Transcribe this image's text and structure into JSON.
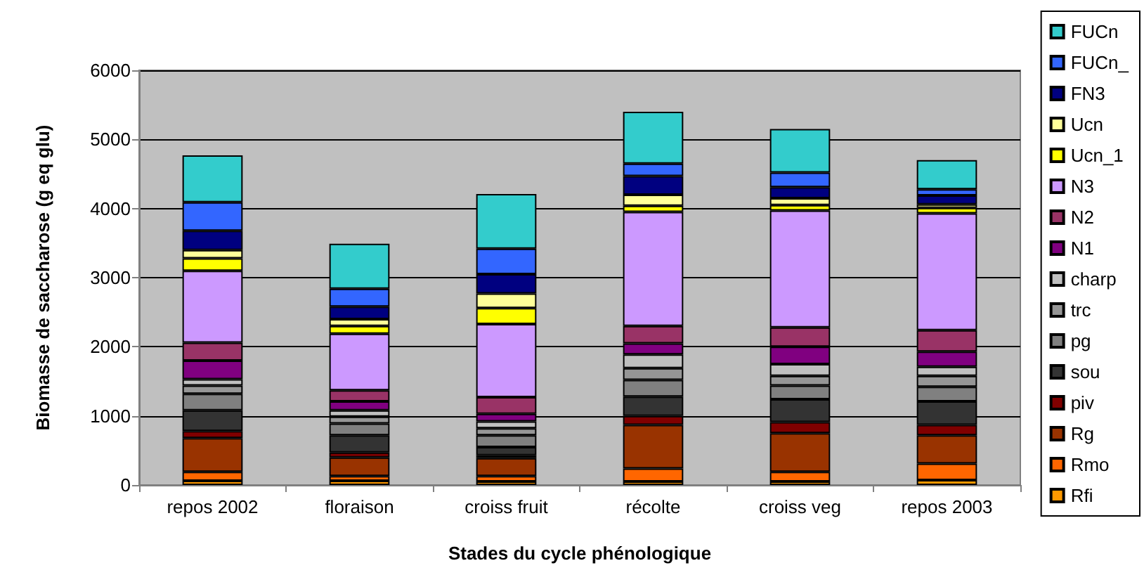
{
  "chart_data": {
    "type": "bar",
    "stacked": true,
    "xlabel": "Stades du cycle phénologique",
    "ylabel": "Biomasse de saccharose (g eq glu)",
    "categories": [
      "repos 2002",
      "floraison",
      "croiss fruit",
      "récolte",
      "croiss veg",
      "repos 2003"
    ],
    "ylim": [
      0,
      6000
    ],
    "yticks": [
      0,
      1000,
      2000,
      3000,
      4000,
      5000,
      6000
    ],
    "grid": "y",
    "legend": "right",
    "series": [
      {
        "name": "Rfi",
        "color": "#ff9900",
        "values": [
          60,
          60,
          50,
          50,
          50,
          70
        ]
      },
      {
        "name": "Rmo",
        "color": "#ff6600",
        "values": [
          130,
          70,
          80,
          190,
          140,
          240
        ]
      },
      {
        "name": "Rg",
        "color": "#993300",
        "values": [
          490,
          270,
          260,
          630,
          560,
          410
        ]
      },
      {
        "name": "piv",
        "color": "#800000",
        "values": [
          100,
          70,
          40,
          130,
          160,
          150
        ]
      },
      {
        "name": "sou",
        "color": "#333333",
        "values": [
          300,
          250,
          120,
          280,
          330,
          340
        ]
      },
      {
        "name": "pg",
        "color": "#808080",
        "values": [
          240,
          170,
          170,
          240,
          200,
          210
        ]
      },
      {
        "name": "trc",
        "color": "#969696",
        "values": [
          120,
          100,
          100,
          170,
          140,
          160
        ]
      },
      {
        "name": "charp",
        "color": "#c0c0c0",
        "values": [
          90,
          90,
          100,
          200,
          170,
          130
        ]
      },
      {
        "name": "N1",
        "color": "#800080",
        "values": [
          270,
          130,
          110,
          160,
          250,
          220
        ]
      },
      {
        "name": "N2",
        "color": "#993366",
        "values": [
          260,
          160,
          240,
          250,
          280,
          310
        ]
      },
      {
        "name": "N3",
        "color": "#cc99ff",
        "values": [
          1040,
          820,
          1060,
          1650,
          1690,
          1690
        ]
      },
      {
        "name": "Ucn_1",
        "color": "#ffff00",
        "values": [
          180,
          110,
          230,
          90,
          80,
          80
        ]
      },
      {
        "name": "Ucn",
        "color": "#ffff99",
        "values": [
          120,
          100,
          210,
          160,
          100,
          50
        ]
      },
      {
        "name": "FN3",
        "color": "#000080",
        "values": [
          280,
          180,
          280,
          270,
          160,
          130
        ]
      },
      {
        "name": "FUCn_",
        "color": "#3366ff",
        "values": [
          410,
          260,
          370,
          180,
          210,
          90
        ]
      },
      {
        "name": "FUCn",
        "color": "#33cccc",
        "values": [
          680,
          650,
          790,
          750,
          630,
          420
        ]
      }
    ]
  }
}
